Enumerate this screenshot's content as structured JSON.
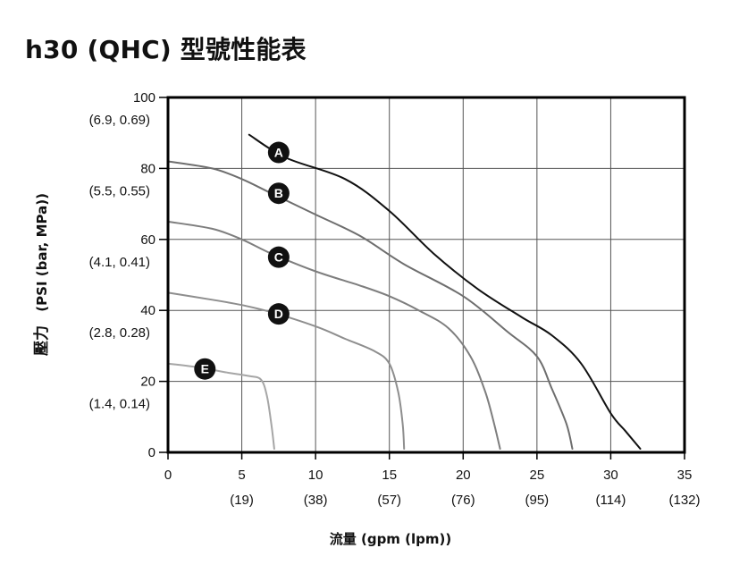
{
  "chart_data": {
    "type": "line",
    "title": "h30 (QHC) 型號性能表",
    "xlabel": "流量 (gpm (lpm))",
    "ylabel_prefix": "壓力",
    "ylabel": "(PSI (bar, MPa))",
    "xlim": [
      0,
      35
    ],
    "ylim": [
      0,
      100
    ],
    "grid": true,
    "x_ticks": [
      {
        "value": 0,
        "label": "0",
        "sub": ""
      },
      {
        "value": 5,
        "label": "5",
        "sub": "(19)"
      },
      {
        "value": 10,
        "label": "10",
        "sub": "(38)"
      },
      {
        "value": 15,
        "label": "15",
        "sub": "(57)"
      },
      {
        "value": 20,
        "label": "20",
        "sub": "(76)"
      },
      {
        "value": 25,
        "label": "25",
        "sub": "(95)"
      },
      {
        "value": 30,
        "label": "30",
        "sub": "(114)"
      },
      {
        "value": 35,
        "label": "35",
        "sub": "(132)"
      }
    ],
    "y_ticks": [
      {
        "value": 0,
        "label": "0",
        "sub": ""
      },
      {
        "value": 20,
        "label": "20",
        "sub": "(1.4, 0.14)"
      },
      {
        "value": 40,
        "label": "40",
        "sub": "(2.8, 0.28)"
      },
      {
        "value": 60,
        "label": "60",
        "sub": "(4.1, 0.41)"
      },
      {
        "value": 80,
        "label": "80",
        "sub": "(5.5, 0.55)"
      },
      {
        "value": 100,
        "label": "100",
        "sub": "(6.9, 0.69)"
      }
    ],
    "series": [
      {
        "name": "A",
        "color": "#111111",
        "points": [
          [
            5.5,
            89.5
          ],
          [
            8,
            83
          ],
          [
            12,
            77
          ],
          [
            15,
            68
          ],
          [
            18,
            56
          ],
          [
            21,
            46
          ],
          [
            24,
            38
          ],
          [
            26,
            33
          ],
          [
            28,
            25
          ],
          [
            30,
            11
          ],
          [
            31,
            6
          ],
          [
            32,
            1
          ]
        ],
        "marker": [
          7.5,
          84.5
        ]
      },
      {
        "name": "B",
        "color": "#6e6e6e",
        "points": [
          [
            0,
            82
          ],
          [
            3,
            80
          ],
          [
            5,
            77
          ],
          [
            7,
            73
          ],
          [
            10,
            67
          ],
          [
            13,
            61
          ],
          [
            16,
            53
          ],
          [
            20,
            44
          ],
          [
            23,
            34
          ],
          [
            25,
            27
          ],
          [
            26,
            18
          ],
          [
            27,
            8
          ],
          [
            27.4,
            1
          ]
        ],
        "marker": [
          7.5,
          73
        ]
      },
      {
        "name": "C",
        "color": "#7e7e7e",
        "points": [
          [
            0,
            65
          ],
          [
            3,
            63
          ],
          [
            5,
            60
          ],
          [
            7,
            56
          ],
          [
            10,
            51
          ],
          [
            13,
            47
          ],
          [
            15,
            44
          ],
          [
            17,
            40
          ],
          [
            19,
            35
          ],
          [
            20.5,
            27
          ],
          [
            21.5,
            17
          ],
          [
            22.1,
            8
          ],
          [
            22.5,
            1
          ]
        ],
        "marker": [
          7.5,
          55
        ]
      },
      {
        "name": "D",
        "color": "#8e8e8e",
        "points": [
          [
            0,
            45
          ],
          [
            3,
            43
          ],
          [
            5,
            41.5
          ],
          [
            7,
            39.5
          ],
          [
            10,
            35.5
          ],
          [
            12,
            32
          ],
          [
            14,
            28.5
          ],
          [
            15,
            25
          ],
          [
            15.6,
            17
          ],
          [
            15.9,
            8
          ],
          [
            16.0,
            1
          ]
        ],
        "marker": [
          7.5,
          39
        ]
      },
      {
        "name": "E",
        "color": "#a6a6a6",
        "points": [
          [
            0,
            25
          ],
          [
            2,
            24
          ],
          [
            4,
            22.5
          ],
          [
            5.5,
            21.5
          ],
          [
            6.3,
            20.5
          ],
          [
            6.7,
            16
          ],
          [
            7.0,
            8
          ],
          [
            7.2,
            1
          ]
        ],
        "marker": [
          2.5,
          23.5
        ]
      }
    ]
  }
}
